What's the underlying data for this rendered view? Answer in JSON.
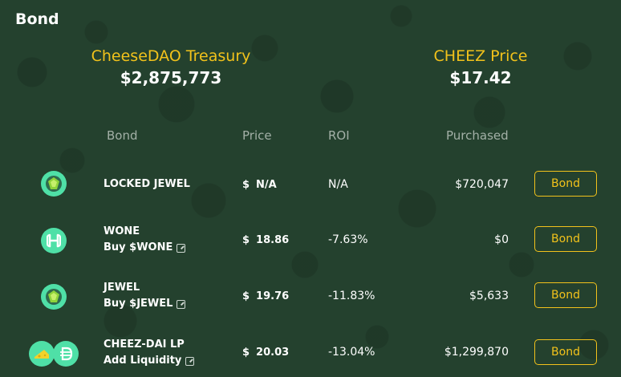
{
  "header": {
    "title": "Bond"
  },
  "stats": {
    "treasury": {
      "label": "CheeseDAO Treasury",
      "value": "$2,875,773"
    },
    "price": {
      "label": "CHEEZ Price",
      "value": "$17.42"
    }
  },
  "table": {
    "columns": {
      "bond": "Bond",
      "price": "Price",
      "roi": "ROI",
      "purchased": "Purchased"
    },
    "currency_symbol": "$",
    "button_label": "Bond",
    "rows": [
      {
        "name": "LOCKED JEWEL",
        "sub": "",
        "price": "N/A",
        "roi": "N/A",
        "purchased": "$720,047",
        "icon": "jewel-icon"
      },
      {
        "name": "WONE",
        "sub": "Buy $WONE",
        "price": "18.86",
        "roi": "-7.63%",
        "purchased": "$0",
        "icon": "harmony-icon"
      },
      {
        "name": "JEWEL",
        "sub": "Buy $JEWEL",
        "price": "19.76",
        "roi": "-11.83%",
        "purchased": "$5,633",
        "icon": "jewel-icon"
      },
      {
        "name": "CHEEZ-DAI LP",
        "sub": "Add Liquidity",
        "price": "20.03",
        "roi": "-13.04%",
        "purchased": "$1,299,870",
        "icon": "cheez-dai-lp-icon"
      }
    ]
  },
  "colors": {
    "accent": "#f2c21b",
    "background": "#24412e",
    "icon": "#4fe0a7"
  }
}
